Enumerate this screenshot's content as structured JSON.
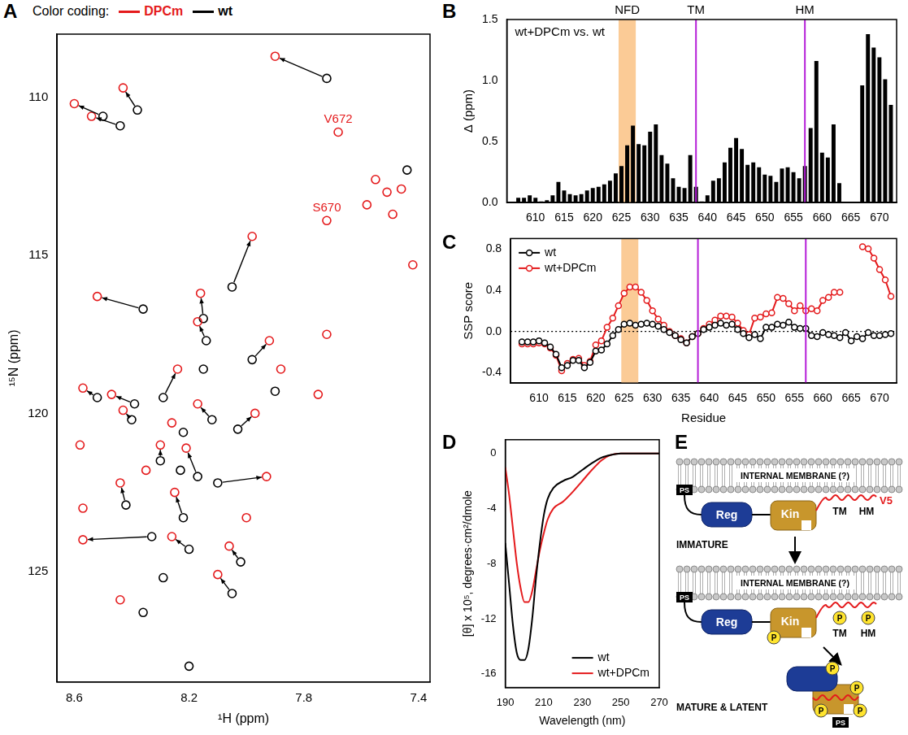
{
  "chart_data": [
    {
      "panel": "A",
      "type": "scatter",
      "legend_title": "Color coding:",
      "legend": "top",
      "x_label": "¹H (ppm)",
      "y_label": "¹⁵N (ppm)",
      "xlim": [
        8.66,
        7.36
      ],
      "xticks": [
        8.6,
        8.2,
        7.8,
        7.4
      ],
      "ylim": [
        128.5,
        108
      ],
      "yticks": [
        110,
        115,
        120,
        125
      ],
      "grid": false,
      "series": [
        {
          "name": "DPCm",
          "color": "#e41a1c",
          "marker": "circle",
          "x": [
            7.9,
            8.43,
            8.6,
            8.54,
            7.98,
            8.52,
            8.16,
            8.17,
            7.92,
            8.24,
            8.47,
            8.57,
            8.43,
            7.97,
            8.21,
            7.93,
            8.44,
            8.25,
            8.57,
            8.26,
            8.06,
            8.1,
            8.3,
            8.17,
            7.68,
            7.72,
            7.55,
            7.51,
            7.58,
            7.49,
            7.46,
            7.42,
            7.72,
            7.88,
            7.75,
            8.58,
            8.57,
            8.44,
            8.35,
            8.0,
            8.26
          ],
          "y": [
            108.7,
            109.7,
            110.2,
            110.6,
            114.4,
            116.3,
            116.2,
            117.1,
            117.7,
            118.6,
            119.4,
            119.2,
            119.9,
            120.0,
            121.1,
            122.0,
            122.2,
            122.5,
            124.0,
            123.9,
            124.2,
            125.1,
            121.0,
            119.7,
            111.1,
            113.9,
            112.6,
            113.0,
            113.4,
            113.7,
            112.9,
            115.3,
            117.5,
            118.6,
            119.4,
            121.0,
            123.0,
            125.9,
            121.8,
            123.3,
            120.3
          ]
        },
        {
          "name": "wt",
          "color": "#000000",
          "marker": "circle",
          "x": [
            7.72,
            8.38,
            8.5,
            8.44,
            8.05,
            8.36,
            8.15,
            8.14,
            7.98,
            8.29,
            8.39,
            8.52,
            8.4,
            8.03,
            8.17,
            8.1,
            8.42,
            8.22,
            8.33,
            8.2,
            8.02,
            8.05,
            8.3,
            8.12,
            7.44,
            8.36,
            8.2,
            8.29,
            8.15,
            8.22,
            7.9,
            8.23
          ],
          "y": [
            109.4,
            110.4,
            110.6,
            110.9,
            116.0,
            116.7,
            117.0,
            117.7,
            118.3,
            119.5,
            119.7,
            119.5,
            120.2,
            120.5,
            122.0,
            122.2,
            122.9,
            123.3,
            123.9,
            124.3,
            124.7,
            125.7,
            121.5,
            120.2,
            112.3,
            126.3,
            128.0,
            125.2,
            118.6,
            120.6,
            119.3,
            121.8
          ]
        }
      ],
      "shifts": [
        {
          "from": [
            7.72,
            109.4
          ],
          "to": [
            7.9,
            108.7
          ]
        },
        {
          "from": [
            8.38,
            110.4
          ],
          "to": [
            8.43,
            109.7
          ]
        },
        {
          "from": [
            8.5,
            110.6
          ],
          "to": [
            8.6,
            110.2
          ]
        },
        {
          "from": [
            8.44,
            110.9
          ],
          "to": [
            8.54,
            110.6
          ]
        },
        {
          "from": [
            8.05,
            116.0
          ],
          "to": [
            7.98,
            114.4
          ]
        },
        {
          "from": [
            8.36,
            116.7
          ],
          "to": [
            8.52,
            116.3
          ]
        },
        {
          "from": [
            8.15,
            117.0
          ],
          "to": [
            8.16,
            116.2
          ]
        },
        {
          "from": [
            8.14,
            117.7
          ],
          "to": [
            8.17,
            117.1
          ]
        },
        {
          "from": [
            7.98,
            118.3
          ],
          "to": [
            7.92,
            117.7
          ]
        },
        {
          "from": [
            8.29,
            119.5
          ],
          "to": [
            8.24,
            118.6
          ]
        },
        {
          "from": [
            8.39,
            119.7
          ],
          "to": [
            8.47,
            119.4
          ]
        },
        {
          "from": [
            8.52,
            119.5
          ],
          "to": [
            8.57,
            119.2
          ]
        },
        {
          "from": [
            8.4,
            120.2
          ],
          "to": [
            8.43,
            119.9
          ]
        },
        {
          "from": [
            8.03,
            120.5
          ],
          "to": [
            7.97,
            120.0
          ]
        },
        {
          "from": [
            8.17,
            122.0
          ],
          "to": [
            8.21,
            121.1
          ]
        },
        {
          "from": [
            8.1,
            122.2
          ],
          "to": [
            7.93,
            122.0
          ]
        },
        {
          "from": [
            8.42,
            122.9
          ],
          "to": [
            8.44,
            122.2
          ]
        },
        {
          "from": [
            8.22,
            123.3
          ],
          "to": [
            8.25,
            122.5
          ]
        },
        {
          "from": [
            8.33,
            123.9
          ],
          "to": [
            8.57,
            124.0
          ]
        },
        {
          "from": [
            8.2,
            124.3
          ],
          "to": [
            8.26,
            123.9
          ]
        },
        {
          "from": [
            8.02,
            124.7
          ],
          "to": [
            8.06,
            124.2
          ]
        },
        {
          "from": [
            8.05,
            125.7
          ],
          "to": [
            8.1,
            125.1
          ]
        },
        {
          "from": [
            8.3,
            121.5
          ],
          "to": [
            8.3,
            121.0
          ]
        },
        {
          "from": [
            8.12,
            120.2
          ],
          "to": [
            8.17,
            119.7
          ]
        }
      ],
      "annotations": [
        {
          "text": "V672",
          "x": 7.68,
          "y": 111.1,
          "color": "#e41a1c"
        },
        {
          "text": "S670",
          "x": 7.72,
          "y": 113.9,
          "color": "#e41a1c"
        }
      ]
    },
    {
      "panel": "B",
      "type": "bar",
      "color": "#000000",
      "y_label": "Δ (ppm)",
      "annotation": "wt+DPCm vs. wt",
      "x": [
        607,
        608,
        609,
        610,
        611,
        612,
        613,
        614,
        615,
        616,
        617,
        618,
        619,
        620,
        621,
        622,
        623,
        624,
        625,
        626,
        627,
        628,
        629,
        630,
        631,
        632,
        633,
        634,
        635,
        636,
        637,
        638,
        639,
        640,
        641,
        642,
        643,
        644,
        645,
        646,
        647,
        648,
        649,
        650,
        651,
        652,
        653,
        654,
        655,
        656,
        657,
        658,
        659,
        660,
        661,
        662,
        663,
        664,
        665,
        666,
        667,
        668,
        669,
        670,
        671,
        672
      ],
      "values": [
        0.04,
        0.04,
        0.06,
        0.04,
        0.01,
        0.02,
        0.06,
        0.17,
        0.1,
        0.07,
        0.06,
        0.07,
        0.1,
        0.12,
        0.13,
        0.15,
        0.18,
        0.24,
        0.3,
        0.47,
        0.63,
        0.48,
        0.47,
        0.58,
        0.64,
        0.39,
        0.32,
        0.2,
        0.13,
        0.12,
        0.39,
        0.13,
        0.01,
        0.06,
        0.18,
        0.2,
        0.33,
        0.45,
        0.53,
        0.44,
        0.31,
        0.33,
        0.29,
        0.23,
        0.22,
        0.17,
        0.28,
        0.29,
        0.25,
        0.2,
        0.3,
        0.61,
        1.16,
        0.41,
        0.37,
        0.64,
        0.16,
        null,
        null,
        null,
        0.96,
        1.38,
        1.27,
        1.19,
        1.01,
        0.8
      ],
      "xlim": [
        605,
        673
      ],
      "xticks": [
        610,
        615,
        620,
        625,
        630,
        635,
        640,
        645,
        650,
        655,
        660,
        665,
        670
      ],
      "ylim": [
        0,
        1.5
      ],
      "yticks": [
        {
          "value": 0,
          "label": "0.0"
        },
        0.5,
        {
          "value": 1,
          "label": "1.0"
        },
        1.5
      ],
      "grid": false,
      "shaded_regions": [
        {
          "label": "NFD",
          "from": 624.5,
          "to": 627.5
        }
      ],
      "vlines": [
        {
          "label": "TM",
          "x": 638
        },
        {
          "label": "HM",
          "x": 657
        }
      ]
    },
    {
      "panel": "C",
      "type": "line",
      "x_label": "Residue",
      "y_label": "SSP score",
      "legend": "upper left",
      "x": [
        607,
        608,
        609,
        610,
        611,
        612,
        613,
        614,
        615,
        616,
        617,
        618,
        619,
        620,
        621,
        622,
        623,
        624,
        625,
        626,
        627,
        628,
        629,
        630,
        631,
        632,
        633,
        634,
        635,
        636,
        637,
        638,
        639,
        640,
        641,
        642,
        643,
        644,
        645,
        646,
        647,
        648,
        649,
        650,
        651,
        652,
        653,
        654,
        655,
        656,
        657,
        658,
        659,
        660,
        661,
        662,
        663,
        664,
        665,
        666,
        667,
        668,
        669,
        670,
        671,
        672
      ],
      "series": [
        {
          "name": "wt",
          "color": "#000000",
          "marker": "circle",
          "values": [
            -0.1,
            -0.1,
            -0.1,
            -0.09,
            -0.11,
            -0.15,
            -0.22,
            -0.35,
            -0.33,
            -0.28,
            -0.28,
            -0.35,
            -0.3,
            -0.19,
            -0.18,
            -0.12,
            -0.04,
            0.02,
            0.07,
            0.08,
            0.06,
            0.07,
            0.08,
            0.07,
            0.05,
            0.02,
            -0.01,
            -0.04,
            -0.08,
            -0.11,
            -0.05,
            -0.02,
            0.02,
            0.04,
            0.06,
            0.08,
            0.06,
            0.07,
            0.02,
            -0.02,
            -0.06,
            -0.03,
            -0.07,
            0.04,
            0.04,
            0.07,
            0.06,
            0.09,
            0.04,
            0.03,
            0.03,
            -0.04,
            -0.05,
            -0.01,
            -0.03,
            -0.04,
            -0.06,
            -0.01,
            -0.09,
            -0.05,
            -0.07,
            -0.01,
            -0.04,
            -0.04,
            -0.03,
            -0.02
          ]
        },
        {
          "name": "wt+DPCm",
          "color": "#e41a1c",
          "marker": "circle",
          "values": [
            -0.12,
            -0.12,
            -0.12,
            -0.11,
            -0.12,
            -0.16,
            -0.23,
            -0.38,
            -0.31,
            -0.27,
            -0.26,
            -0.33,
            -0.29,
            -0.13,
            -0.09,
            0.04,
            0.13,
            0.25,
            0.37,
            0.43,
            0.43,
            0.38,
            0.3,
            0.2,
            0.12,
            0.06,
            0.0,
            -0.04,
            -0.07,
            -0.11,
            -0.05,
            -0.02,
            0.03,
            0.07,
            0.11,
            0.15,
            0.15,
            0.14,
            0.08,
            0.01,
            -0.03,
            0.13,
            0.14,
            0.17,
            0.18,
            0.33,
            0.32,
            0.27,
            0.2,
            0.25,
            0.2,
            0.22,
            0.2,
            0.3,
            0.33,
            0.38,
            0.38,
            null,
            null,
            null,
            0.82,
            0.8,
            0.71,
            0.6,
            0.5,
            0.34
          ]
        }
      ],
      "xlim": [
        605,
        673
      ],
      "xticks": [
        610,
        615,
        620,
        625,
        630,
        635,
        640,
        645,
        650,
        655,
        660,
        665,
        670
      ],
      "ylim": [
        -0.5,
        0.9
      ],
      "yticks": [
        -0.4,
        {
          "value": 0,
          "label": "0.0"
        },
        0.4,
        0.8
      ],
      "grid": false,
      "hlines": [
        0
      ],
      "shaded_regions": [
        {
          "from": 624.5,
          "to": 627.5
        }
      ],
      "vlines": [
        {
          "x": 638
        },
        {
          "x": 657
        }
      ]
    },
    {
      "panel": "D",
      "type": "line",
      "x_label": "Wavelength (nm)",
      "y_label": "[θ] x 10⁵, degrees·cm²/dmole",
      "legend": "lower right",
      "x": [
        190,
        192,
        194,
        196,
        198,
        200,
        202,
        204,
        206,
        208,
        210,
        212,
        215,
        220,
        225,
        230,
        235,
        240,
        245,
        250,
        260,
        270
      ],
      "series": [
        {
          "name": "wt",
          "color": "#000000",
          "values": [
            -6.5,
            -9.5,
            -12.5,
            -14.5,
            -15.0,
            -15.0,
            -14.2,
            -12.0,
            -9.0,
            -6.5,
            -4.5,
            -3.3,
            -2.5,
            -2.0,
            -1.7,
            -1.2,
            -0.7,
            -0.3,
            -0.1,
            0,
            0,
            0
          ]
        },
        {
          "name": "wt+DPCm",
          "color": "#e41a1c",
          "values": [
            -1.0,
            -3.0,
            -5.5,
            -8.0,
            -9.8,
            -10.8,
            -10.8,
            -10.0,
            -8.5,
            -7.0,
            -5.8,
            -4.8,
            -4.0,
            -3.5,
            -2.8,
            -2.0,
            -1.2,
            -0.5,
            -0.1,
            0,
            0,
            0
          ]
        }
      ],
      "xlim": [
        190,
        270
      ],
      "xticks": [
        190,
        210,
        230,
        250,
        270
      ],
      "ylim": [
        -17,
        1
      ],
      "yticks": [
        -16,
        -12,
        -8,
        -4,
        0
      ],
      "grid": false
    }
  ],
  "diagram": {
    "panel": "E",
    "membrane_label": "INTERNAL MEMBRANE (?)",
    "lipid_label": "PS",
    "domains": [
      "Reg",
      "Kin"
    ],
    "motifs": [
      "TM",
      "HM"
    ],
    "tag": "V5",
    "phospho_label": "P",
    "states": [
      "IMMATURE",
      "MATURE & LATENT"
    ]
  }
}
